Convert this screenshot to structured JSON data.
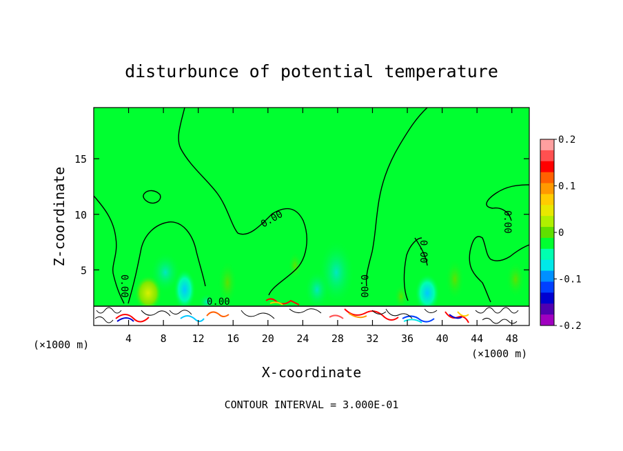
{
  "chart_data": {
    "type": "heatmap",
    "title": "disturbunce of potential temperature",
    "xlabel": "X-coordinate",
    "ylabel": "Z-coordinate",
    "x_unit": "(×1000 m)",
    "y_unit": "(×1000 m)",
    "xlim": [
      0,
      50
    ],
    "ylim": [
      0,
      19.6
    ],
    "x_ticks": [
      4,
      8,
      12,
      16,
      20,
      24,
      28,
      32,
      36,
      40,
      44,
      48
    ],
    "y_ticks": [
      5,
      10,
      15
    ],
    "colorbar": {
      "min": -0.2,
      "max": 0.2,
      "ticks": [
        "0.2",
        "0.1",
        "0",
        "-0.1",
        "-0.2"
      ],
      "tick_values": [
        0.2,
        0.1,
        0,
        -0.1,
        -0.2
      ],
      "colors": [
        "#ffa0a0",
        "#ff5050",
        "#ff0000",
        "#ff6000",
        "#ff9900",
        "#ffcc00",
        "#e8e800",
        "#b0f000",
        "#60e000",
        "#00ff30",
        "#00ffb0",
        "#00e8e8",
        "#0090ff",
        "#0040ff",
        "#0000d0",
        "#5000b0",
        "#a000c0"
      ]
    },
    "contour_label": "0.00",
    "footer": "CONTOUR INTERVAL = 3.000E-01"
  }
}
